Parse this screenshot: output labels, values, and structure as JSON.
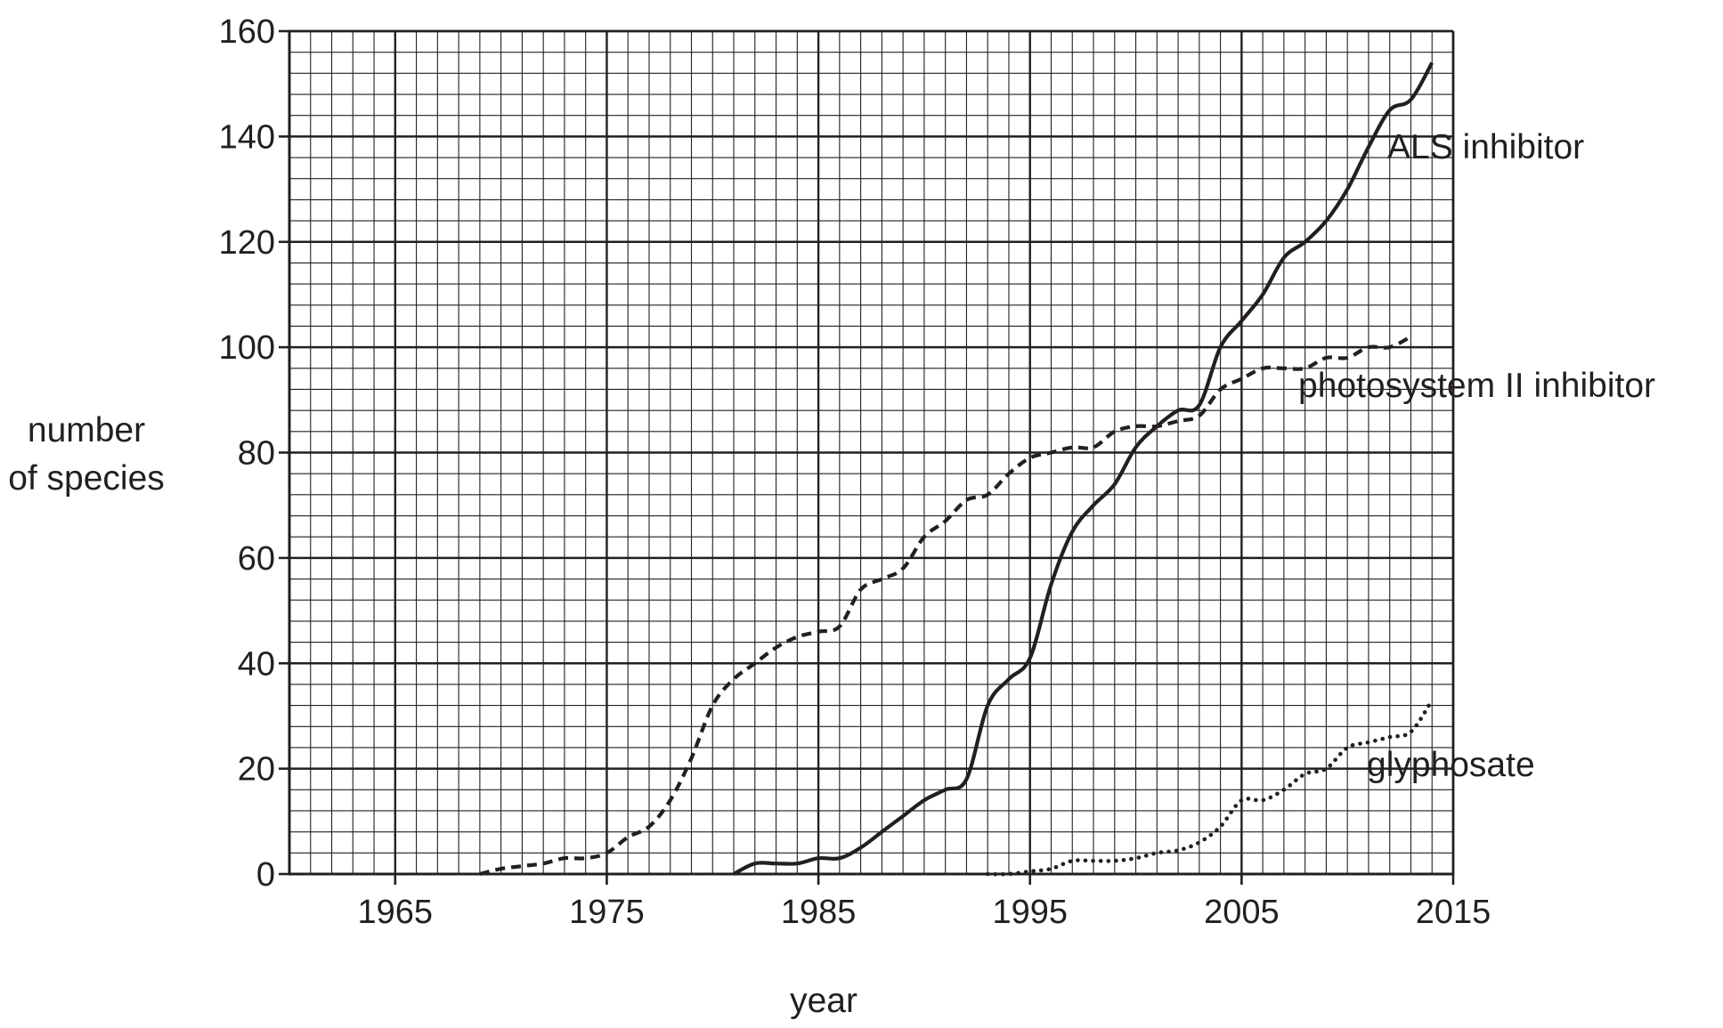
{
  "chart_data": {
    "type": "line",
    "title": "",
    "xlabel": "year",
    "ylabel": [
      "number",
      "of species"
    ],
    "xlim": [
      1960,
      2015
    ],
    "ylim": [
      0,
      160
    ],
    "x_ticks": [
      1965,
      1975,
      1985,
      1995,
      2005,
      2015
    ],
    "y_ticks": [
      0,
      20,
      40,
      60,
      80,
      100,
      120,
      140,
      160
    ],
    "grid": true,
    "grid_minor_x": 1,
    "grid_minor_y": 4,
    "colors": {
      "ink": "#231f20",
      "grid": "#231f20",
      "background": "#ffffff"
    },
    "series": [
      {
        "name": "ALS inhibitor",
        "style": "solid",
        "points": [
          [
            1981,
            0
          ],
          [
            1982,
            2
          ],
          [
            1983,
            2
          ],
          [
            1984,
            2
          ],
          [
            1985,
            3
          ],
          [
            1986,
            3
          ],
          [
            1987,
            5
          ],
          [
            1988,
            8
          ],
          [
            1989,
            11
          ],
          [
            1990,
            14
          ],
          [
            1991,
            16
          ],
          [
            1992,
            18
          ],
          [
            1993,
            32
          ],
          [
            1994,
            37
          ],
          [
            1995,
            41
          ],
          [
            1996,
            55
          ],
          [
            1997,
            65
          ],
          [
            1998,
            70
          ],
          [
            1999,
            74
          ],
          [
            2000,
            81
          ],
          [
            2001,
            85
          ],
          [
            2002,
            88
          ],
          [
            2003,
            89
          ],
          [
            2004,
            100
          ],
          [
            2005,
            105
          ],
          [
            2006,
            110
          ],
          [
            2007,
            117
          ],
          [
            2008,
            120
          ],
          [
            2009,
            124
          ],
          [
            2010,
            130
          ],
          [
            2011,
            138
          ],
          [
            2012,
            145
          ],
          [
            2013,
            147
          ],
          [
            2014,
            154
          ]
        ]
      },
      {
        "name": "photosystem II inhibitor",
        "style": "dashed",
        "points": [
          [
            1969,
            0
          ],
          [
            1970,
            1
          ],
          [
            1971,
            1.5
          ],
          [
            1972,
            2
          ],
          [
            1973,
            3
          ],
          [
            1974,
            3
          ],
          [
            1975,
            4
          ],
          [
            1976,
            7
          ],
          [
            1977,
            9
          ],
          [
            1978,
            14
          ],
          [
            1979,
            22
          ],
          [
            1980,
            32
          ],
          [
            1981,
            37
          ],
          [
            1982,
            40
          ],
          [
            1983,
            43
          ],
          [
            1984,
            45
          ],
          [
            1985,
            46
          ],
          [
            1986,
            47
          ],
          [
            1987,
            54
          ],
          [
            1988,
            56
          ],
          [
            1989,
            58
          ],
          [
            1990,
            64
          ],
          [
            1991,
            67
          ],
          [
            1992,
            71
          ],
          [
            1993,
            72
          ],
          [
            1994,
            76
          ],
          [
            1995,
            79
          ],
          [
            1996,
            80
          ],
          [
            1997,
            81
          ],
          [
            1998,
            81
          ],
          [
            1999,
            84
          ],
          [
            2000,
            85
          ],
          [
            2001,
            85
          ],
          [
            2002,
            86
          ],
          [
            2003,
            87
          ],
          [
            2004,
            92
          ],
          [
            2005,
            94
          ],
          [
            2006,
            96
          ],
          [
            2007,
            96
          ],
          [
            2008,
            96
          ],
          [
            2009,
            98
          ],
          [
            2010,
            98
          ],
          [
            2011,
            100
          ],
          [
            2012,
            100
          ],
          [
            2013,
            102
          ]
        ]
      },
      {
        "name": "glyphosate",
        "style": "dotted",
        "points": [
          [
            1993,
            0
          ],
          [
            1994,
            0
          ],
          [
            1995,
            0.5
          ],
          [
            1996,
            1
          ],
          [
            1997,
            2.5
          ],
          [
            1998,
            2.5
          ],
          [
            1999,
            2.5
          ],
          [
            2000,
            3
          ],
          [
            2001,
            4
          ],
          [
            2002,
            4.5
          ],
          [
            2003,
            6
          ],
          [
            2004,
            9
          ],
          [
            2005,
            14
          ],
          [
            2006,
            14
          ],
          [
            2007,
            16
          ],
          [
            2008,
            19
          ],
          [
            2009,
            20
          ],
          [
            2010,
            24
          ],
          [
            2011,
            25
          ],
          [
            2012,
            26
          ],
          [
            2013,
            27
          ],
          [
            2014,
            33
          ]
        ]
      }
    ]
  }
}
